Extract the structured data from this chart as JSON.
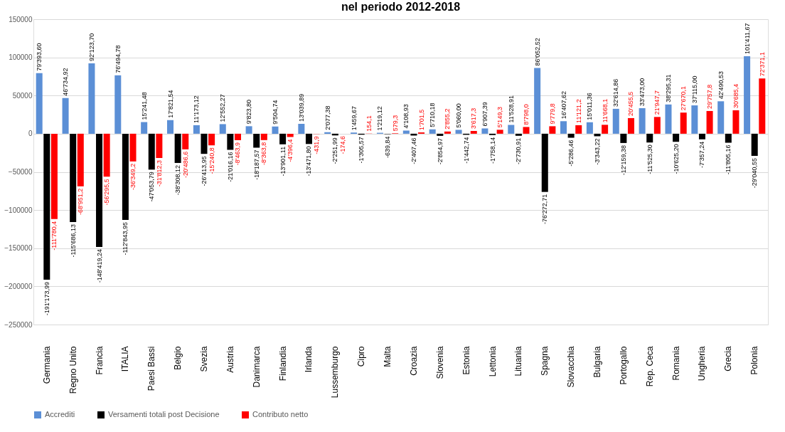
{
  "chart_data": {
    "type": "bar",
    "title": "nel periodo 2012-2018",
    "categories": [
      "Germania",
      "Regno Unito",
      "Francia",
      "ITALIA",
      "Paesi Bassi",
      "Belgio",
      "Svezia",
      "Austria",
      "Danimarca",
      "Finlandia",
      "Irlanda",
      "Lussemburgo",
      "Cipro",
      "Malta",
      "Croazia",
      "Slovenia",
      "Estonia",
      "Lettonia",
      "Lituania",
      "Spagna",
      "Slovacchia",
      "Bulgaria",
      "Portogallo",
      "Rep. Ceca",
      "Romania",
      "Ungheria",
      "Grecia",
      "Polonia"
    ],
    "series": [
      {
        "name": "Accrediti",
        "color": "#5b8fd6",
        "values": [
          79393.6,
          46734.92,
          92123.7,
          76494.78,
          15241.48,
          17821.54,
          11173.12,
          12552.27,
          9823.8,
          9504.74,
          13039.89,
          2077.38,
          1459.67,
          1219.12,
          4108.93,
          5710.18,
          5060.0,
          6907.39,
          11528.91,
          86052.52,
          16407.62,
          15011.36,
          32614.86,
          33473.0,
          38295.31,
          37115.0,
          42490.53,
          101411.67
        ],
        "value_labels": [
          "79'393,60",
          "46'734,92",
          "92'123,70",
          "76'494,78",
          "15'241,48",
          "17'821,54",
          "11'173,12",
          "12'552,27",
          "9'823,80",
          "9'504,74",
          "13'039,89",
          "2'077,38",
          "1'459,67",
          "1'219,12",
          "4'108,93",
          "5'710,18",
          "5'060,00",
          "6'907,39",
          "11'528,91",
          "86'052,52",
          "16'407,62",
          "15'011,36",
          "32'614,86",
          "33'473,00",
          "38'295,31",
          "37'115,00",
          "42'490,53",
          "101'411,67"
        ]
      },
      {
        "name": "Versamenti totali post Decisione",
        "color": "#000000",
        "values": [
          -191173.99,
          -115686.13,
          -148419.24,
          -112843.95,
          -47053.79,
          -38308.12,
          -26413.95,
          -21016.16,
          -18187.57,
          -13901.11,
          -13471.8,
          -2251.99,
          -1305.57,
          -639.84,
          -2407.46,
          -2854.97,
          -1442.74,
          -1758.14,
          -2730.91,
          -76272.71,
          -5286.46,
          -3343.22,
          -12159.38,
          -11525.3,
          -10625.2,
          -7357.24,
          -11805.16,
          -29040.55
        ],
        "value_labels": [
          "-191'173,99",
          "-115'686,13",
          "-148'419,24",
          "-112'843,95",
          "-47'053,79",
          "-38'308,12",
          "-26'413,95",
          "-21'016,16",
          "-18'187,57",
          "-13'901,11",
          "-13'471,80",
          "-2'251,99",
          "-1'305,57",
          "-639,84",
          "-2'407,46",
          "-2'854,97",
          "-1'442,74",
          "-1'758,14",
          "-2'730,91",
          "-76'272,71",
          "-5'286,46",
          "-3'343,22",
          "-12'159,38",
          "-11'525,30",
          "-10'625,20",
          "-7'357,24",
          "-11'805,16",
          "-29'040,55"
        ]
      },
      {
        "name": "Contributo netto",
        "color": "#ff0000",
        "values": [
          -111780.4,
          -68951.2,
          -56295.5,
          -36349.2,
          -31812.3,
          -20486.6,
          -15240.8,
          -8463.9,
          -8363.8,
          -4396.4,
          -431.9,
          -174.6,
          154.1,
          579.3,
          1701.5,
          2855.2,
          3617.3,
          5149.3,
          8798.0,
          9779.8,
          11121.2,
          11668.1,
          20455.5,
          21947.7,
          27670.1,
          29757.8,
          30685.4,
          72371.1
        ],
        "value_labels": [
          "-111'780,4",
          "-68'951,2",
          "-56'295,5",
          "-36'349,2",
          "-31'812,3",
          "-20'486,6",
          "-15'240,8",
          "-8'463,9",
          "-8'363,8",
          "-4'396,4",
          "-431,9",
          "-174,6",
          "154,1",
          "579,3",
          "1'701,5",
          "2'855,2",
          "3'617,3",
          "5'149,3",
          "8'798,0",
          "9'779,8",
          "11'121,2",
          "11'668,1",
          "20'455,5",
          "21'947,7",
          "27'670,1",
          "29'757,8",
          "30'685,4",
          "72'371,1"
        ]
      }
    ],
    "ylim": [
      -250000,
      150000
    ],
    "yticks": [
      -250000,
      -200000,
      -150000,
      -100000,
      -50000,
      0,
      50000,
      100000,
      150000
    ],
    "grid": "y",
    "legend": "bottom"
  }
}
